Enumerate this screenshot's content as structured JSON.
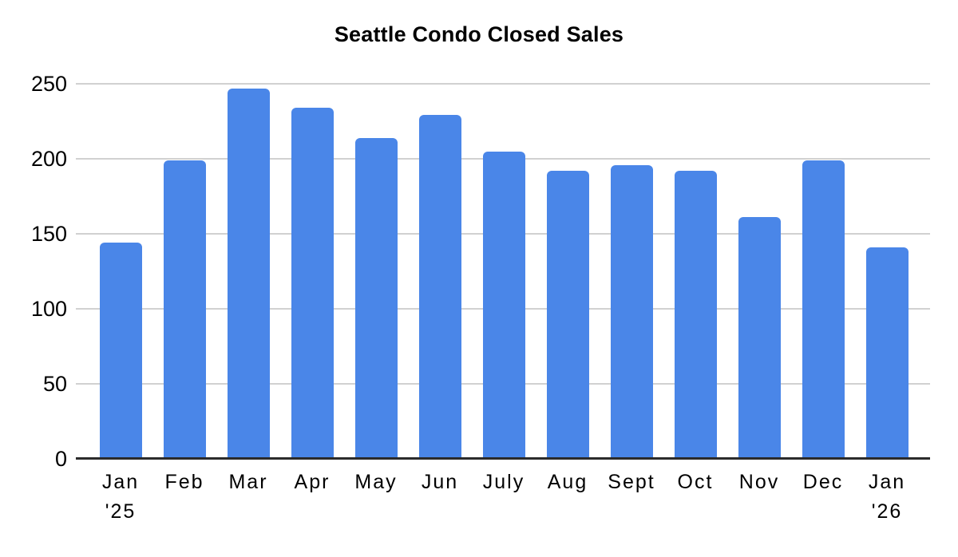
{
  "chart_data": {
    "type": "bar",
    "title": "Seattle Condo Closed Sales",
    "categories": [
      "Jan\n'25",
      "Feb",
      "Mar",
      "Apr",
      "May",
      "Jun",
      "July",
      "Aug",
      "Sept",
      "Oct",
      "Nov",
      "Dec",
      "Jan\n'26"
    ],
    "values": [
      144,
      199,
      247,
      234,
      214,
      229,
      205,
      192,
      196,
      192,
      161,
      199,
      141
    ],
    "xlabel": "",
    "ylabel": "",
    "ylim": [
      0,
      250
    ],
    "y_ticks": [
      0,
      50,
      100,
      150,
      200,
      250
    ],
    "grid": true,
    "legend_position": "none",
    "colors": {
      "bar": "#4a86e8",
      "gridline": "#d1d1d1",
      "axis_line": "#2b2b2b",
      "text": "#000000",
      "background": "#ffffff"
    }
  }
}
